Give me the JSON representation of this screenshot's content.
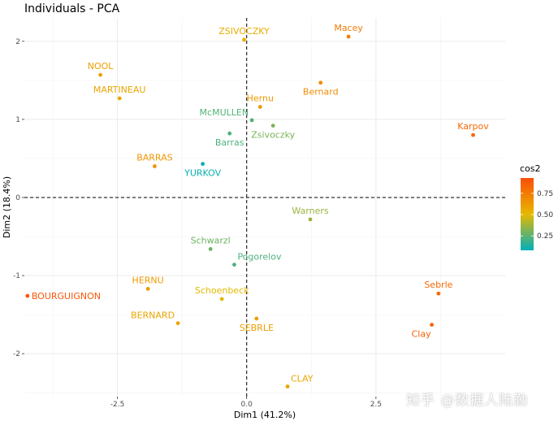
{
  "chart_data": {
    "type": "scatter",
    "title": "Individuals - PCA",
    "xlabel": "Dim1 (41.2%)",
    "ylabel": "Dim2 (18.4%)",
    "xlim": [
      -4.3,
      5.0
    ],
    "ylim": [
      -2.55,
      2.3
    ],
    "x_ticks": [
      -2.5,
      0.0,
      2.5
    ],
    "y_ticks": [
      -2,
      -1,
      0,
      1,
      2
    ],
    "x_tick_labels": [
      "-2.5",
      "0.0",
      "2.5"
    ],
    "y_tick_labels": [
      "-2",
      "-1",
      "0",
      "1",
      "2"
    ],
    "grid": true,
    "reference_lines": {
      "x": 0,
      "y": 0,
      "style": "dashed"
    },
    "legend": {
      "title": "cos2",
      "position": "right",
      "labels": [
        "0.75",
        "0.50",
        "0.25"
      ],
      "values": [
        0.75,
        0.5,
        0.25
      ],
      "range": [
        0.08,
        0.93
      ],
      "colors": [
        "#00AFBB",
        "#E7B800",
        "#FC4E07"
      ]
    },
    "points": [
      {
        "label": "SEBRLE",
        "x": 0.19,
        "y": -1.55,
        "cos2": 0.6,
        "label_pos": "below"
      },
      {
        "label": "CLAY",
        "x": 0.79,
        "y": -2.42,
        "cos2": 0.58,
        "label_pos": "above-right"
      },
      {
        "label": "BERNARD",
        "x": -1.33,
        "y": -1.61,
        "cos2": 0.58,
        "label_pos": "above-left"
      },
      {
        "label": "YURKOV",
        "x": -0.85,
        "y": 0.43,
        "cos2": 0.1,
        "label_pos": "below"
      },
      {
        "label": "ZSIVOCZKY",
        "x": -0.05,
        "y": 2.02,
        "cos2": 0.55,
        "label_pos": "above"
      },
      {
        "label": "McMULLEN",
        "x": 0.1,
        "y": 0.99,
        "cos2": 0.23,
        "label_pos": "above-left"
      },
      {
        "label": "MARTINEAU",
        "x": -2.46,
        "y": 1.27,
        "cos2": 0.58,
        "label_pos": "above"
      },
      {
        "label": "HERNU",
        "x": -1.91,
        "y": -1.17,
        "cos2": 0.62,
        "label_pos": "above"
      },
      {
        "label": "BARRAS",
        "x": -1.78,
        "y": 0.4,
        "cos2": 0.64,
        "label_pos": "above"
      },
      {
        "label": "NOOL",
        "x": -2.83,
        "y": 1.57,
        "cos2": 0.6,
        "label_pos": "above"
      },
      {
        "label": "BOURGUIGNON",
        "x": -4.24,
        "y": -1.26,
        "cos2": 0.9,
        "label_pos": "right"
      },
      {
        "label": "Sebrle",
        "x": 3.71,
        "y": -1.23,
        "cos2": 0.82,
        "label_pos": "above"
      },
      {
        "label": "Clay",
        "x": 3.58,
        "y": -1.63,
        "cos2": 0.85,
        "label_pos": "below-left"
      },
      {
        "label": "Karpov",
        "x": 4.38,
        "y": 0.8,
        "cos2": 0.83,
        "label_pos": "above"
      },
      {
        "label": "Macey",
        "x": 1.97,
        "y": 2.06,
        "cos2": 0.75,
        "label_pos": "above"
      },
      {
        "label": "Warners",
        "x": 1.23,
        "y": -0.28,
        "cos2": 0.36,
        "label_pos": "above"
      },
      {
        "label": "Zsivoczky",
        "x": 0.51,
        "y": 0.92,
        "cos2": 0.3,
        "label_pos": "below"
      },
      {
        "label": "Hernu",
        "x": 0.26,
        "y": 1.16,
        "cos2": 0.62,
        "label_pos": "above"
      },
      {
        "label": "Bernard",
        "x": 1.43,
        "y": 1.47,
        "cos2": 0.68,
        "label_pos": "below"
      },
      {
        "label": "Schwarzl",
        "x": -0.7,
        "y": -0.66,
        "cos2": 0.28,
        "label_pos": "above"
      },
      {
        "label": "Pogorelov",
        "x": -0.24,
        "y": -0.86,
        "cos2": 0.22,
        "label_pos": "above-right"
      },
      {
        "label": "Schoenbeck",
        "x": -0.48,
        "y": -1.3,
        "cos2": 0.5,
        "label_pos": "above"
      },
      {
        "label": "Barras",
        "x": -0.33,
        "y": 0.82,
        "cos2": 0.22,
        "label_pos": "below"
      }
    ]
  },
  "watermark": "知乎 @数据人陆勤"
}
